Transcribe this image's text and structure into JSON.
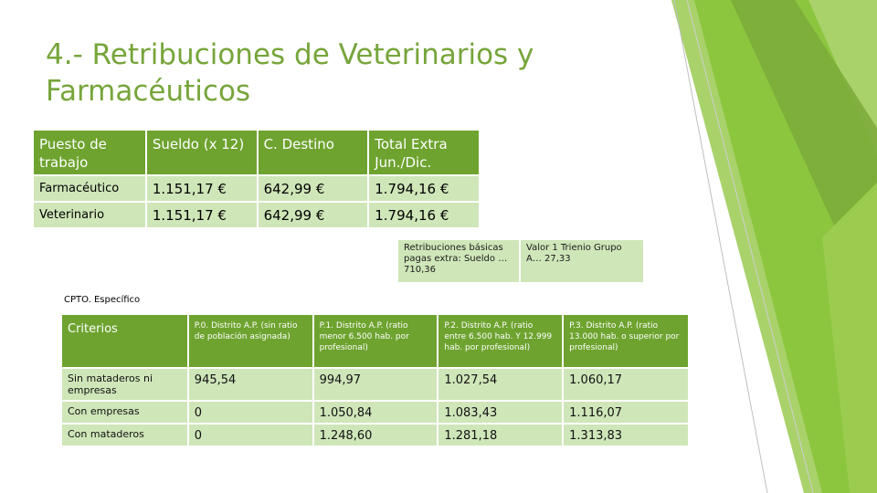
{
  "title": "4.- Retribuciones de Veterinarios y Farmacéuticos",
  "colors": {
    "accent": "#76a53a",
    "header_bg": "#6ea32f",
    "cell_bg": "#cfe6b9"
  },
  "table1": {
    "headers": [
      "Puesto de trabajo",
      "Sueldo (x 12)",
      "C. Destino",
      "Total Extra Jun./Dic."
    ],
    "rows": [
      [
        "Farmacéutico",
        "1.151,17 €",
        "642,99 €",
        "1.794,16 €"
      ],
      [
        "Veterinario",
        "1.151,17 €",
        "642,99 €",
        "1.794,16 €"
      ]
    ]
  },
  "note_basic": "Retribuciones básicas pagas extra: Sueldo … 710,36",
  "note_trienio": "Valor 1 Trienio Grupo A… 27,33",
  "cpto_label": "CPTO. Específico",
  "table3": {
    "headers": [
      "Criterios",
      "P.0. Distrito A.P. (sin ratio de población asignada)",
      "P.1. Distrito A.P. (ratio menor 6.500 hab. por profesional)",
      "P.2. Distrito A.P. (ratio entre 6.500 hab. Y 12.999 hab. por profesional)",
      "P.3. Distrito A.P. (ratio 13.000 hab. o superior por profesional)"
    ],
    "rows": [
      [
        "Sin mataderos ni empresas",
        "945,54",
        "994,97",
        "1.027,54",
        "1.060,17"
      ],
      [
        "Con empresas",
        "0",
        "1.050,84",
        "1.083,43",
        "1.116,07"
      ],
      [
        "Con mataderos",
        "0",
        "1.248,60",
        "1.281,18",
        "1.313,83"
      ]
    ]
  }
}
